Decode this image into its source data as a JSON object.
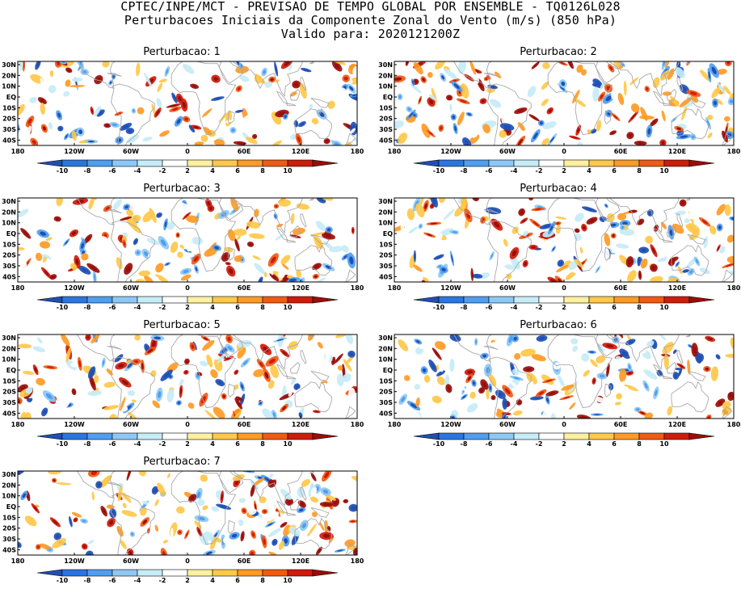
{
  "header": {
    "line1": "CPTEC/INPE/MCT - PREVISAO DE TEMPO GLOBAL POR ENSEMBLE - TQ0126L028",
    "line2": "Perturbacoes Iniciais da Componente Zonal do Vento (m/s) (850 hPa)",
    "line3": "Valido para: 2020121200Z"
  },
  "map": {
    "lat_labels": [
      "30N",
      "20N",
      "10N",
      "EQ",
      "10S",
      "20S",
      "30S",
      "40S"
    ],
    "lon_labels": [
      "180",
      "120W",
      "60W",
      "0",
      "60E",
      "120E",
      "180"
    ],
    "colorbar_labels": [
      "-10",
      "-8",
      "-6",
      "-4",
      "-2",
      "2",
      "4",
      "6",
      "8",
      "10"
    ],
    "colorbar_colors": [
      "#1f4fb4",
      "#2a76e0",
      "#4f9ef0",
      "#8dc8f5",
      "#c6ecf7",
      "#ffffff",
      "#fff0a0",
      "#ffc849",
      "#ff9a25",
      "#f05a13",
      "#cf1c0b",
      "#9a0e0a"
    ],
    "land_outline_color": "#a8a8a8"
  },
  "panels": [
    {
      "title": "Perturbacao: 1"
    },
    {
      "title": "Perturbacao: 2"
    },
    {
      "title": "Perturbacao: 3"
    },
    {
      "title": "Perturbacao: 4"
    },
    {
      "title": "Perturbacao: 5"
    },
    {
      "title": "Perturbacao: 6"
    },
    {
      "title": "Perturbacao: 7"
    }
  ]
}
